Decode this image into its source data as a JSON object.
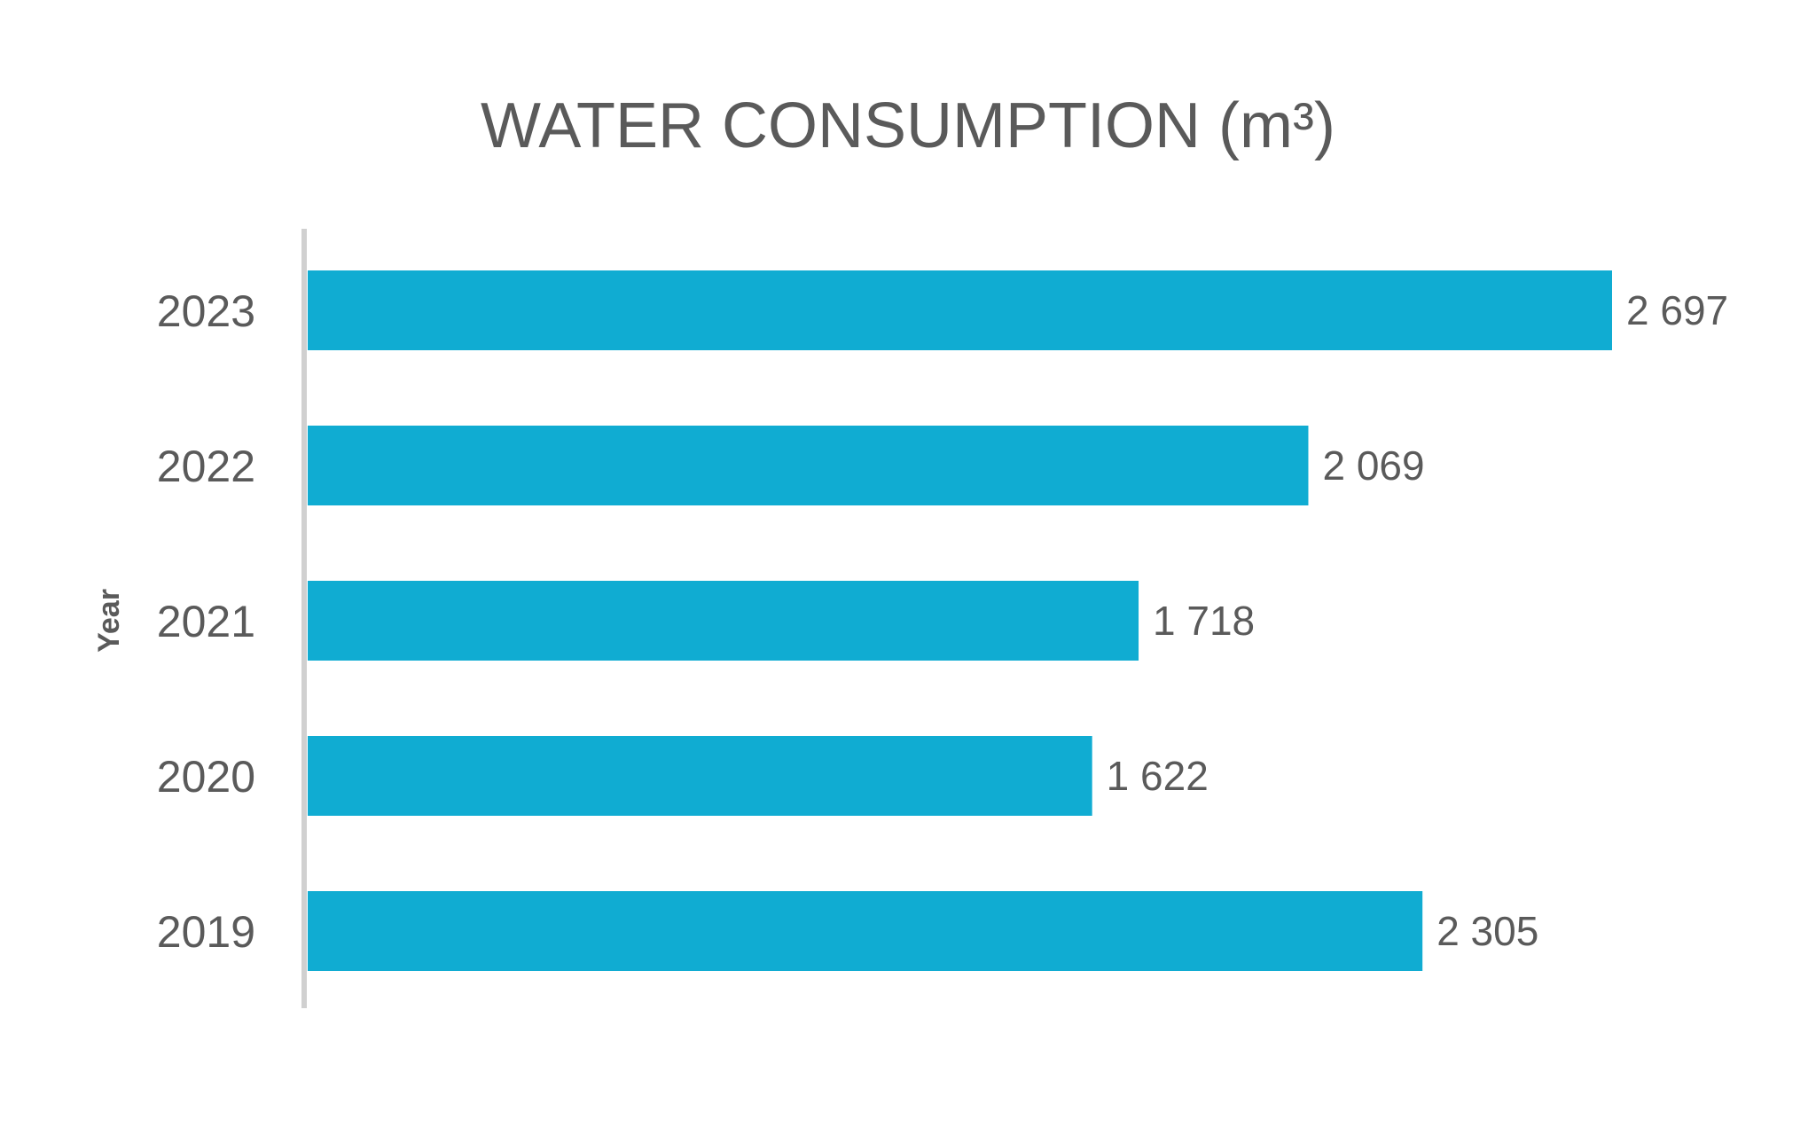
{
  "chart_data": {
    "type": "bar",
    "orientation": "horizontal",
    "title": "WATER CONSUMPTION (m³)",
    "xlabel": "",
    "ylabel": "Year",
    "categories": [
      "2023",
      "2022",
      "2021",
      "2020",
      "2019"
    ],
    "values": [
      2697,
      2069,
      1718,
      1622,
      2305
    ],
    "value_labels": [
      "2 697",
      "2 069",
      "1 718",
      "1 622",
      "2 305"
    ],
    "xlim": [
      0,
      2697
    ],
    "grid": false,
    "legend": "none",
    "colors": {
      "bar": "#10acd2",
      "axis": "#d0d0d0",
      "text": "#5a5a5a"
    }
  }
}
